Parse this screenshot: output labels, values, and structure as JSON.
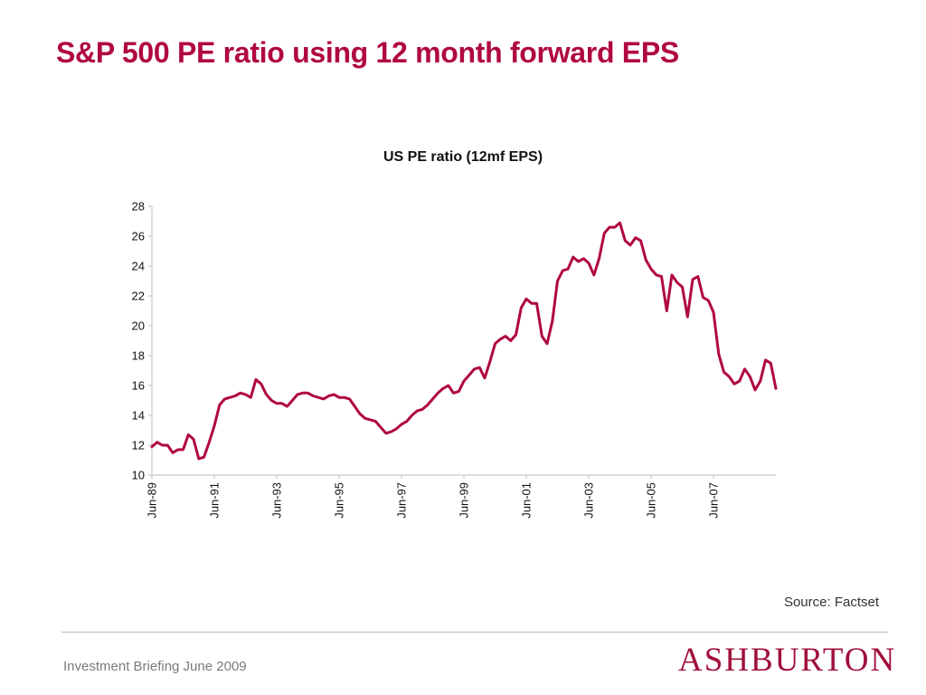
{
  "slide": {
    "title": "S&P 500 PE ratio using 12 month forward EPS",
    "source": "Source: Factset",
    "footer": "Investment Briefing June 2009",
    "logo": "ASHBURTON",
    "accent_color": "#b0083e"
  },
  "chart_data": {
    "type": "line",
    "title": "US PE ratio (12mf EPS)",
    "xlabel": "",
    "ylabel": "",
    "ylim": [
      10,
      28
    ],
    "yticks": [
      10,
      12,
      14,
      16,
      18,
      20,
      22,
      24,
      26,
      28
    ],
    "xticks": [
      "Jun-89",
      "Jun-91",
      "Jun-93",
      "Jun-95",
      "Jun-97",
      "Jun-99",
      "Jun-01",
      "Jun-03",
      "Jun-05",
      "Jun-07"
    ],
    "grid": false,
    "legend": "none",
    "x_unit": "months since Jun-89",
    "xlim": [
      0,
      240
    ],
    "series": [
      {
        "name": "US PE ratio (12mf EPS)",
        "color": "#b0083e",
        "x": [
          0,
          2,
          4,
          6,
          8,
          10,
          12,
          14,
          16,
          18,
          20,
          22,
          24,
          26,
          28,
          30,
          32,
          34,
          36,
          38,
          40,
          42,
          44,
          46,
          48,
          50,
          52,
          54,
          56,
          58,
          60,
          62,
          64,
          66,
          68,
          70,
          72,
          74,
          76,
          78,
          80,
          82,
          84,
          86,
          88,
          90,
          92,
          94,
          96,
          98,
          100,
          102,
          104,
          106,
          108,
          110,
          112,
          114,
          116,
          118,
          120,
          122,
          124,
          126,
          128,
          130,
          132,
          134,
          136,
          138,
          140,
          142,
          144,
          146,
          148,
          150,
          152,
          154,
          156,
          158,
          160,
          162,
          164,
          166,
          168,
          170,
          172,
          174,
          176,
          178,
          180,
          182,
          184,
          186,
          188,
          190,
          192,
          194,
          196,
          198,
          200,
          202,
          204,
          206,
          208,
          210,
          212,
          214,
          216,
          218,
          220,
          222,
          224,
          226,
          228,
          230,
          232,
          234,
          236,
          238,
          240
        ],
        "values": [
          11.9,
          12.2,
          12.0,
          12.0,
          11.5,
          11.7,
          11.7,
          12.7,
          12.4,
          11.1,
          11.2,
          12.2,
          13.3,
          14.7,
          15.1,
          15.2,
          15.3,
          15.5,
          15.4,
          15.2,
          16.4,
          16.1,
          15.4,
          15.0,
          14.8,
          14.8,
          14.6,
          15.0,
          15.4,
          15.5,
          15.5,
          15.3,
          15.2,
          15.1,
          15.3,
          15.4,
          15.2,
          15.2,
          15.1,
          14.6,
          14.1,
          13.8,
          13.7,
          13.6,
          13.2,
          12.8,
          12.9,
          13.1,
          13.4,
          13.6,
          14.0,
          14.3,
          14.4,
          14.7,
          15.1,
          15.5,
          15.8,
          16.0,
          15.5,
          15.6,
          16.3,
          16.7,
          17.1,
          17.2,
          16.5,
          17.6,
          18.8,
          19.1,
          19.3,
          19.0,
          19.4,
          21.2,
          21.8,
          21.5,
          21.5,
          19.3,
          18.8,
          20.3,
          23.0,
          23.7,
          23.8,
          24.6,
          24.3,
          24.5,
          24.2,
          23.4,
          24.5,
          26.2,
          26.6,
          26.6,
          26.9,
          25.7,
          25.4,
          25.9,
          25.7,
          24.4,
          23.8,
          23.4,
          23.3,
          21.0,
          23.4,
          22.9,
          22.6,
          20.6,
          23.1,
          23.3,
          21.9,
          21.7,
          20.9,
          18.1,
          16.9,
          16.6,
          16.1,
          16.3,
          17.1,
          16.6,
          15.7,
          16.3,
          17.7,
          17.5,
          15.8
        ]
      }
    ]
  }
}
